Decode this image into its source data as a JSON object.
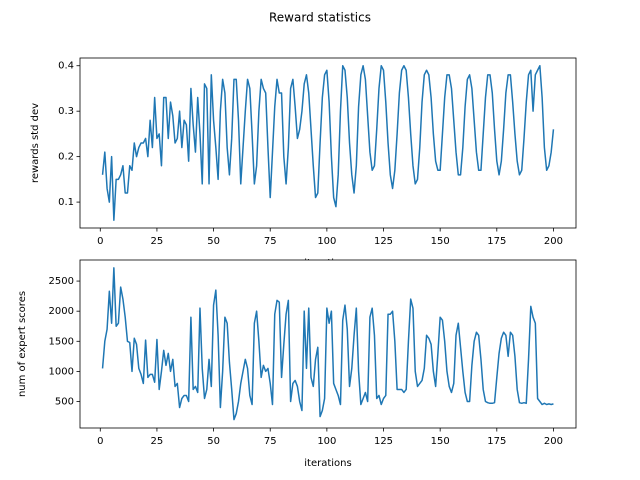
{
  "title": "Reward statistics",
  "chart_data": [
    {
      "type": "line",
      "xlabel": "iterations",
      "ylabel": "rewards std dev",
      "color": "#1f77b4",
      "xlim": [
        -8.95,
        209.95
      ],
      "ylim": [
        0.043,
        0.417
      ],
      "xticks": [
        0,
        25,
        50,
        75,
        100,
        125,
        150,
        175,
        200
      ],
      "yticks": [
        0.1,
        0.2,
        0.3,
        0.4
      ],
      "x": [
        1,
        2,
        3,
        4,
        5,
        6,
        7,
        8,
        9,
        10,
        11,
        12,
        13,
        14,
        15,
        16,
        17,
        18,
        19,
        20,
        21,
        22,
        23,
        24,
        25,
        26,
        27,
        28,
        29,
        30,
        31,
        32,
        33,
        34,
        35,
        36,
        37,
        38,
        39,
        40,
        41,
        42,
        43,
        44,
        45,
        46,
        47,
        48,
        49,
        50,
        51,
        52,
        53,
        54,
        55,
        56,
        57,
        58,
        59,
        60,
        61,
        62,
        63,
        64,
        65,
        66,
        67,
        68,
        69,
        70,
        71,
        72,
        73,
        74,
        75,
        76,
        77,
        78,
        79,
        80,
        81,
        82,
        83,
        84,
        85,
        86,
        87,
        88,
        89,
        90,
        91,
        92,
        93,
        94,
        95,
        96,
        97,
        98,
        99,
        100,
        101,
        102,
        103,
        104,
        105,
        106,
        107,
        108,
        109,
        110,
        111,
        112,
        113,
        114,
        115,
        116,
        117,
        118,
        119,
        120,
        121,
        122,
        123,
        124,
        125,
        126,
        127,
        128,
        129,
        130,
        131,
        132,
        133,
        134,
        135,
        136,
        137,
        138,
        139,
        140,
        141,
        142,
        143,
        144,
        145,
        146,
        147,
        148,
        149,
        150,
        151,
        152,
        153,
        154,
        155,
        156,
        157,
        158,
        159,
        160,
        161,
        162,
        163,
        164,
        165,
        166,
        167,
        168,
        169,
        170,
        171,
        172,
        173,
        174,
        175,
        176,
        177,
        178,
        179,
        180,
        181,
        182,
        183,
        184,
        185,
        186,
        187,
        188,
        189,
        190,
        191,
        192,
        193,
        194,
        195,
        196,
        197,
        198,
        199,
        200
      ],
      "values": [
        0.16,
        0.21,
        0.13,
        0.1,
        0.2,
        0.06,
        0.15,
        0.15,
        0.16,
        0.18,
        0.12,
        0.12,
        0.18,
        0.17,
        0.23,
        0.2,
        0.22,
        0.23,
        0.23,
        0.24,
        0.2,
        0.28,
        0.22,
        0.33,
        0.24,
        0.25,
        0.18,
        0.33,
        0.33,
        0.24,
        0.32,
        0.29,
        0.23,
        0.24,
        0.3,
        0.22,
        0.28,
        0.27,
        0.19,
        0.35,
        0.27,
        0.21,
        0.33,
        0.25,
        0.14,
        0.36,
        0.35,
        0.14,
        0.38,
        0.28,
        0.22,
        0.15,
        0.3,
        0.37,
        0.34,
        0.22,
        0.16,
        0.24,
        0.37,
        0.37,
        0.28,
        0.14,
        0.22,
        0.3,
        0.37,
        0.35,
        0.25,
        0.14,
        0.18,
        0.3,
        0.37,
        0.35,
        0.34,
        0.22,
        0.11,
        0.21,
        0.31,
        0.37,
        0.34,
        0.34,
        0.2,
        0.14,
        0.22,
        0.35,
        0.37,
        0.31,
        0.24,
        0.26,
        0.3,
        0.36,
        0.38,
        0.34,
        0.26,
        0.18,
        0.11,
        0.12,
        0.23,
        0.33,
        0.38,
        0.39,
        0.32,
        0.2,
        0.11,
        0.09,
        0.16,
        0.3,
        0.4,
        0.39,
        0.33,
        0.23,
        0.16,
        0.12,
        0.18,
        0.31,
        0.38,
        0.4,
        0.37,
        0.29,
        0.21,
        0.17,
        0.18,
        0.26,
        0.35,
        0.4,
        0.39,
        0.32,
        0.23,
        0.16,
        0.13,
        0.17,
        0.25,
        0.34,
        0.39,
        0.4,
        0.39,
        0.33,
        0.25,
        0.18,
        0.14,
        0.15,
        0.22,
        0.32,
        0.38,
        0.39,
        0.38,
        0.33,
        0.25,
        0.19,
        0.17,
        0.17,
        0.25,
        0.33,
        0.38,
        0.38,
        0.35,
        0.28,
        0.21,
        0.16,
        0.16,
        0.22,
        0.31,
        0.37,
        0.38,
        0.35,
        0.28,
        0.21,
        0.17,
        0.17,
        0.25,
        0.33,
        0.38,
        0.38,
        0.34,
        0.26,
        0.19,
        0.16,
        0.19,
        0.26,
        0.34,
        0.38,
        0.38,
        0.32,
        0.25,
        0.19,
        0.16,
        0.17,
        0.24,
        0.32,
        0.38,
        0.39,
        0.3,
        0.38,
        0.39,
        0.4,
        0.33,
        0.22,
        0.17,
        0.18,
        0.21,
        0.26
      ]
    },
    {
      "type": "line",
      "xlabel": "iterations",
      "ylabel": "num of expert scores",
      "color": "#1f77b4",
      "xlim": [
        -8.95,
        209.95
      ],
      "ylim": [
        60,
        2850
      ],
      "xticks": [
        0,
        25,
        50,
        75,
        100,
        125,
        150,
        175,
        200
      ],
      "yticks": [
        500,
        1000,
        1500,
        2000,
        2500
      ],
      "x": [
        1,
        2,
        3,
        4,
        5,
        6,
        7,
        8,
        9,
        10,
        11,
        12,
        13,
        14,
        15,
        16,
        17,
        18,
        19,
        20,
        21,
        22,
        23,
        24,
        25,
        26,
        27,
        28,
        29,
        30,
        31,
        32,
        33,
        34,
        35,
        36,
        37,
        38,
        39,
        40,
        41,
        42,
        43,
        44,
        45,
        46,
        47,
        48,
        49,
        50,
        51,
        52,
        53,
        54,
        55,
        56,
        57,
        58,
        59,
        60,
        61,
        62,
        63,
        64,
        65,
        66,
        67,
        68,
        69,
        70,
        71,
        72,
        73,
        74,
        75,
        76,
        77,
        78,
        79,
        80,
        81,
        82,
        83,
        84,
        85,
        86,
        87,
        88,
        89,
        90,
        91,
        92,
        93,
        94,
        95,
        96,
        97,
        98,
        99,
        100,
        101,
        102,
        103,
        104,
        105,
        106,
        107,
        108,
        109,
        110,
        111,
        112,
        113,
        114,
        115,
        116,
        117,
        118,
        119,
        120,
        121,
        122,
        123,
        124,
        125,
        126,
        127,
        128,
        129,
        130,
        131,
        132,
        133,
        134,
        135,
        136,
        137,
        138,
        139,
        140,
        141,
        142,
        143,
        144,
        145,
        146,
        147,
        148,
        149,
        150,
        151,
        152,
        153,
        154,
        155,
        156,
        157,
        158,
        159,
        160,
        161,
        162,
        163,
        164,
        165,
        166,
        167,
        168,
        169,
        170,
        171,
        172,
        173,
        174,
        175,
        176,
        177,
        178,
        179,
        180,
        181,
        182,
        183,
        184,
        185,
        186,
        187,
        188,
        189,
        190,
        191,
        192,
        193,
        194,
        195,
        196,
        197,
        198,
        199,
        200
      ],
      "values": [
        1050,
        1500,
        1700,
        2330,
        1800,
        2720,
        1750,
        1800,
        2400,
        2200,
        1900,
        1500,
        1480,
        1000,
        1550,
        1450,
        1050,
        950,
        800,
        1520,
        900,
        950,
        950,
        820,
        1530,
        700,
        1000,
        1350,
        1100,
        1300,
        1000,
        1200,
        750,
        800,
        400,
        550,
        600,
        600,
        500,
        1900,
        700,
        750,
        650,
        2050,
        1050,
        550,
        700,
        1200,
        750,
        2100,
        2350,
        1600,
        400,
        1000,
        1900,
        1800,
        1150,
        700,
        200,
        300,
        500,
        800,
        1000,
        1200,
        1050,
        600,
        450,
        1800,
        2000,
        1500,
        900,
        1100,
        1000,
        1050,
        800,
        450,
        1950,
        2180,
        2150,
        900,
        1450,
        1950,
        2180,
        500,
        800,
        850,
        750,
        500,
        350,
        2000,
        1050,
        2050,
        900,
        750,
        1200,
        1400,
        250,
        350,
        550,
        2050,
        1800,
        2000,
        800,
        700,
        600,
        450,
        1850,
        2100,
        1700,
        750,
        1050,
        1600,
        2050,
        1000,
        450,
        550,
        650,
        500,
        1900,
        2050,
        1600,
        550,
        600,
        450,
        550,
        600,
        1950,
        1950,
        2000,
        1500,
        700,
        700,
        700,
        650,
        700,
        1500,
        2200,
        2050,
        1000,
        750,
        800,
        850,
        1050,
        1600,
        1550,
        1450,
        1000,
        750,
        1300,
        1900,
        1850,
        1500,
        1000,
        750,
        650,
        800,
        1600,
        1800,
        1400,
        1000,
        650,
        500,
        500,
        1100,
        1500,
        1650,
        1600,
        1200,
        700,
        500,
        480,
        470,
        470,
        480,
        900,
        1300,
        1550,
        1650,
        1600,
        1250,
        1650,
        1600,
        1250,
        700,
        480,
        470,
        480,
        470,
        1200,
        2080,
        1900,
        1800,
        550,
        500,
        450,
        470,
        450,
        460,
        450,
        460
      ]
    }
  ]
}
